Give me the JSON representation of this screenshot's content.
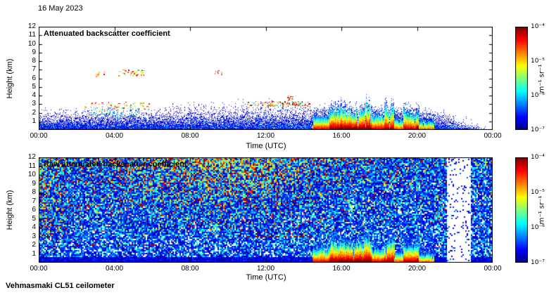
{
  "header": {
    "date": "16 May 2023"
  },
  "footer": {
    "instrument_label": "Vehmasmaki CL51 ceilometer"
  },
  "colors": {
    "axis": "#000000",
    "background": "#ffffff",
    "colormap_low": "#00007f",
    "colormap_high": "#7f0000"
  },
  "chart_data": [
    {
      "type": "heatmap",
      "panel": "processed",
      "title": "Attenuated backscatter coefficient",
      "xlabel": "Time (UTC)",
      "ylabel": "Height (km)",
      "x_ticks": [
        "00:00",
        "04:00",
        "08:00",
        "12:00",
        "16:00",
        "20:00",
        "00:00"
      ],
      "x_range_hours": [
        0,
        24
      ],
      "y_ticks": [
        1,
        2,
        3,
        4,
        5,
        6,
        7,
        8,
        9,
        10,
        11,
        12
      ],
      "y_range_km": [
        0,
        12
      ],
      "grid": false,
      "colorbar": {
        "colormap": "jet",
        "scale": "log",
        "range_min": "1e-7",
        "range_max": "1e-4",
        "tick_labels": [
          "10⁻⁴",
          "10⁻⁵",
          "10⁻⁶",
          "10⁻⁷"
        ],
        "unit": "m⁻¹ sr⁻¹"
      },
      "features": {
        "boundary_layer": {
          "base_top_km": 1.3,
          "midday_bump_km": 0.5,
          "decay_start_hour": 21
        },
        "clouds": [
          {
            "t0": 2.4,
            "t1": 6.0,
            "h0": 2.4,
            "h1": 3.2,
            "density": 0.55,
            "palette": "warm",
            "virga": true
          },
          {
            "t0": 2.6,
            "t1": 5.6,
            "h0": 1.4,
            "h1": 2.5,
            "density": 0.5,
            "palette": "cool"
          },
          {
            "t0": 3.0,
            "t1": 3.5,
            "h0": 6.2,
            "h1": 6.8,
            "density": 0.8,
            "palette": "warm"
          },
          {
            "t0": 4.2,
            "t1": 5.6,
            "h0": 6.3,
            "h1": 7.0,
            "density": 0.8,
            "palette": "warm"
          },
          {
            "t0": 9.3,
            "t1": 9.7,
            "h0": 6.4,
            "h1": 6.9,
            "density": 0.8,
            "palette": "warm"
          },
          {
            "t0": 11.0,
            "t1": 14.45,
            "h0": 2.8,
            "h1": 3.3,
            "density": 0.8,
            "palette": "warm"
          },
          {
            "t0": 13.1,
            "t1": 13.6,
            "h0": 3.5,
            "h1": 4.0,
            "density": 0.6,
            "palette": "warm"
          }
        ],
        "precipitation": [
          {
            "t0": 14.5,
            "t1": 15.4,
            "top": 2.0,
            "intensity": 0.75
          },
          {
            "t0": 15.4,
            "t1": 16.2,
            "top": 2.6,
            "intensity": 0.95
          },
          {
            "t0": 16.2,
            "t1": 17.2,
            "top": 2.3,
            "intensity": 1.0
          },
          {
            "t0": 17.2,
            "t1": 17.6,
            "top": 3.0,
            "intensity": 1.0
          },
          {
            "t0": 17.6,
            "t1": 18.3,
            "top": 2.0,
            "intensity": 0.8
          },
          {
            "t0": 18.3,
            "t1": 18.8,
            "top": 2.7,
            "intensity": 0.9
          },
          {
            "t0": 18.8,
            "t1": 19.3,
            "top": 1.7,
            "intensity": 0.6
          },
          {
            "t0": 19.3,
            "t1": 20.1,
            "top": 2.3,
            "intensity": 0.85
          },
          {
            "t0": 20.1,
            "t1": 20.9,
            "top": 1.4,
            "intensity": 0.55
          }
        ]
      }
    },
    {
      "type": "heatmap",
      "panel": "raw",
      "title": "Raw attenuated backscatter coefficient",
      "xlabel": "Time (UTC)",
      "ylabel": "Height (km)",
      "x_ticks": [
        "00:00",
        "04:00",
        "08:00",
        "12:00",
        "16:00",
        "20:00",
        "00:00"
      ],
      "x_range_hours": [
        0,
        24
      ],
      "y_ticks": [
        1,
        2,
        3,
        4,
        5,
        6,
        7,
        8,
        9,
        10,
        11,
        12
      ],
      "y_range_km": [
        0,
        12
      ],
      "grid": false,
      "colorbar": {
        "colormap": "jet",
        "scale": "log",
        "range_min": "1e-7",
        "range_max": "1e-4",
        "tick_labels": [
          "10⁻⁴",
          "10⁻⁵",
          "10⁻⁶",
          "10⁻⁷"
        ],
        "unit": "m⁻¹ sr⁻¹"
      },
      "features": {
        "noise": {
          "left_edge_boost_until_hour": 1.8,
          "day_peak_hour": 9.5,
          "day_width_hours": 5.5,
          "white_band_hours": [
            21.55,
            22.8
          ]
        },
        "cloud_dashes": [
          {
            "t0": 1.6,
            "t1": 6.1,
            "h": 6.5,
            "gap": 0.35
          },
          {
            "t0": 4.3,
            "t1": 5.6,
            "h": 7.1,
            "gap": 0.4
          },
          {
            "t0": 2.0,
            "t1": 6.8,
            "h": 2.05,
            "gap": 0.5
          },
          {
            "t0": 9.3,
            "t1": 9.65,
            "h": 6.6,
            "gap": 0.2
          },
          {
            "t0": 11.0,
            "t1": 14.45,
            "h": 3.0,
            "gap": 0.12
          },
          {
            "t0": 13.1,
            "t1": 13.55,
            "h": 3.7,
            "gap": 0.2
          }
        ],
        "precipitation": [
          {
            "t0": 14.5,
            "t1": 15.4,
            "top": 2.0,
            "intensity": 0.75
          },
          {
            "t0": 15.4,
            "t1": 16.2,
            "top": 2.6,
            "intensity": 0.95
          },
          {
            "t0": 16.2,
            "t1": 17.2,
            "top": 2.3,
            "intensity": 1.0
          },
          {
            "t0": 17.2,
            "t1": 17.6,
            "top": 3.0,
            "intensity": 1.0
          },
          {
            "t0": 17.6,
            "t1": 18.3,
            "top": 2.0,
            "intensity": 0.8
          },
          {
            "t0": 18.3,
            "t1": 18.8,
            "top": 2.7,
            "intensity": 0.9
          },
          {
            "t0": 18.8,
            "t1": 19.3,
            "top": 1.7,
            "intensity": 0.6
          },
          {
            "t0": 19.3,
            "t1": 20.1,
            "top": 2.3,
            "intensity": 0.85
          },
          {
            "t0": 20.1,
            "t1": 20.9,
            "top": 1.4,
            "intensity": 0.55
          }
        ]
      }
    }
  ]
}
